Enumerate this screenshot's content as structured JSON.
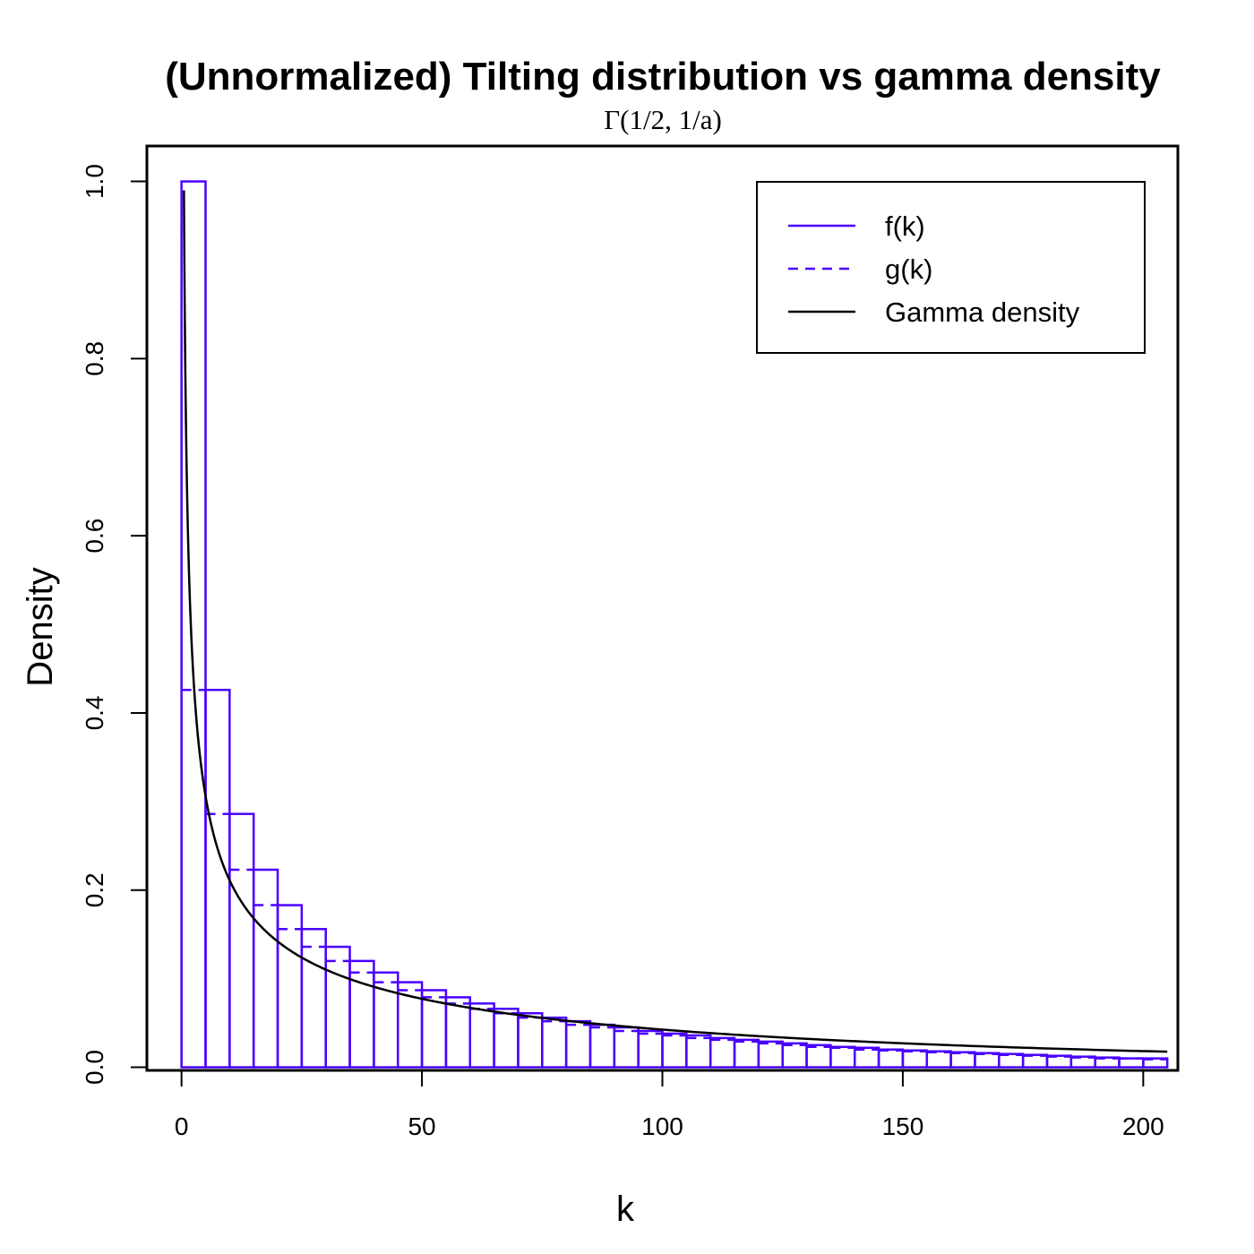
{
  "chart_data": {
    "type": "bar",
    "title": "(Unnormalized) Tilting distribution vs gamma density",
    "subtitle": "Γ(1/2, 1/a)",
    "xlabel": "k",
    "ylabel": "Density",
    "xlim": [
      -7.2,
      207.2
    ],
    "ylim": [
      -0.0035,
      1.04
    ],
    "x_ticks": [
      "0",
      "50",
      "100",
      "150",
      "200"
    ],
    "y_ticks": [
      "0.0",
      "0.2",
      "0.4",
      "0.6",
      "0.8",
      "1.0"
    ],
    "bin_width": 5,
    "bin_starts": [
      0,
      5,
      10,
      15,
      20,
      25,
      30,
      35,
      40,
      45,
      50,
      55,
      60,
      65,
      70,
      75,
      80,
      85,
      90,
      95,
      100,
      105,
      110,
      115,
      120,
      125,
      130,
      135,
      140,
      145,
      150,
      155,
      160,
      165,
      170,
      175,
      180,
      185,
      190,
      195,
      200
    ],
    "series": [
      {
        "name": "f(k)",
        "style": "solid",
        "color": "#4a00ff",
        "values": [
          1.0,
          0.426,
          0.286,
          0.223,
          0.183,
          0.156,
          0.136,
          0.12,
          0.107,
          0.096,
          0.087,
          0.079,
          0.072,
          0.066,
          0.061,
          0.056,
          0.052,
          0.048,
          0.045,
          0.041,
          0.038,
          0.036,
          0.033,
          0.031,
          0.029,
          0.027,
          0.025,
          0.023,
          0.022,
          0.02,
          0.019,
          0.018,
          0.017,
          0.016,
          0.015,
          0.014,
          0.013,
          0.012,
          0.011,
          0.01,
          0.01
        ]
      },
      {
        "name": "g(k)",
        "style": "dashed",
        "color": "#4a00ff",
        "values": [
          0.426,
          0.286,
          0.223,
          0.183,
          0.156,
          0.136,
          0.12,
          0.107,
          0.096,
          0.087,
          0.079,
          0.072,
          0.066,
          0.061,
          0.056,
          0.052,
          0.048,
          0.045,
          0.041,
          0.038,
          0.036,
          0.033,
          0.031,
          0.029,
          0.027,
          0.025,
          0.023,
          0.022,
          0.02,
          0.019,
          0.018,
          0.017,
          0.016,
          0.015,
          0.014,
          0.013,
          0.012,
          0.011,
          0.01,
          0.01,
          0.009
        ]
      },
      {
        "name": "Gamma density",
        "style": "solid",
        "color": "#000000",
        "curve": "y = 0.99 * (x / 0.5)^(-1/2) * exp(-(x - 0.5) / 200)",
        "x_range": [
          0.5,
          205
        ]
      }
    ],
    "legend": {
      "position": "top-right",
      "entries": [
        "f(k)",
        "g(k)",
        "Gamma density"
      ]
    },
    "grid": false
  }
}
